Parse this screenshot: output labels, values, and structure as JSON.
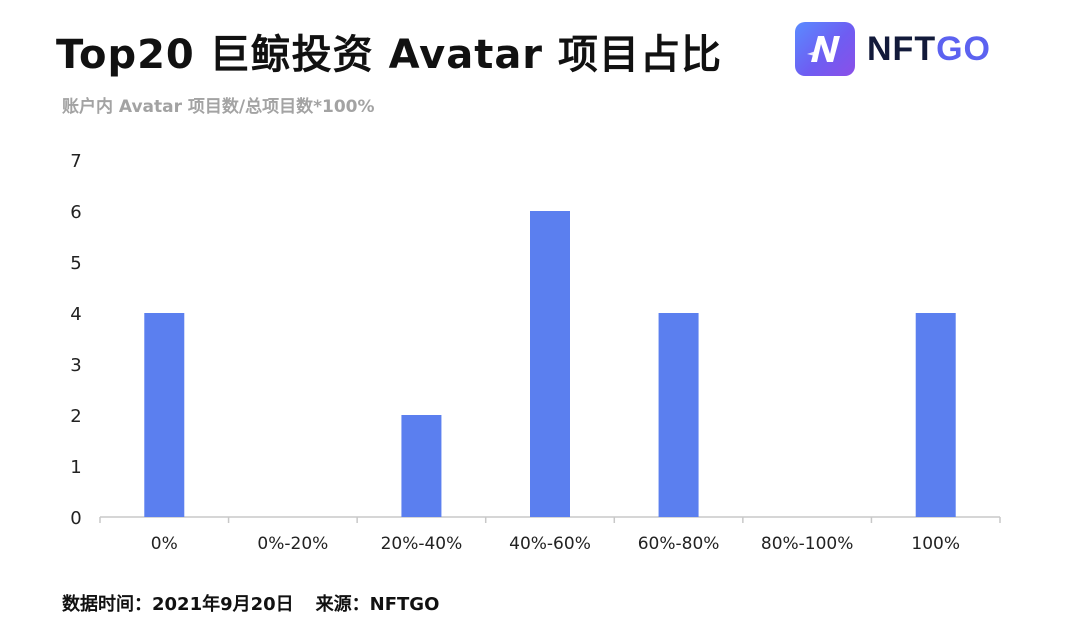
{
  "header": {
    "title": "Top20 巨鲸投资 Avatar 项目占比",
    "subtitle": "账户内 Avatar 项目数/总项目数*100%"
  },
  "logo": {
    "text_main": "NFT",
    "text_accent": "GO",
    "icon": "nftgo-logo-icon"
  },
  "footer": {
    "date": "数据时间：2021年9月20日",
    "source": "来源：NFTGO"
  },
  "colors": {
    "bar": "#5b7fef",
    "axis": "#c8c8c8"
  },
  "chart_data": {
    "type": "bar",
    "title": "Top20 巨鲸投资 Avatar 项目占比",
    "subtitle": "账户内 Avatar 项目数/总项目数*100%",
    "xlabel": "",
    "ylabel": "",
    "categories": [
      "0%",
      "0%-20%",
      "20%-40%",
      "40%-60%",
      "60%-80%",
      "80%-100%",
      "100%"
    ],
    "values": [
      4,
      0,
      2,
      6,
      4,
      0,
      4
    ],
    "yticks": [
      "0",
      "1",
      "2",
      "3",
      "4",
      "5",
      "6",
      "7"
    ],
    "ylim": [
      0,
      7
    ],
    "grid": false,
    "legend": "none"
  }
}
